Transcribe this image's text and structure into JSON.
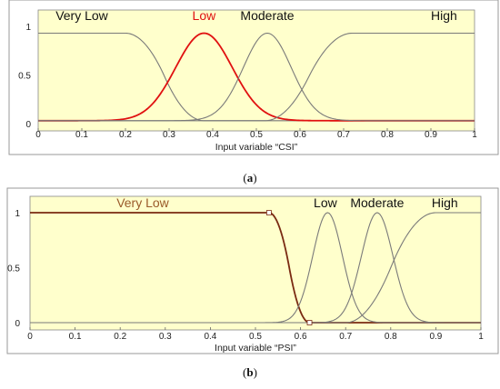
{
  "chart_data": [
    {
      "type": "line",
      "panel_label": "a",
      "xlabel": "Input variable “CSI”",
      "xlim": [
        0,
        1
      ],
      "ylim": [
        0,
        1
      ],
      "x_ticks": [
        "0",
        "0.1",
        "0.2",
        "0.3",
        "0.4",
        "0.5",
        "0.6",
        "0.7",
        "0.8",
        "0.9",
        "1"
      ],
      "y_ticks": [
        "0",
        "0.5",
        "1"
      ],
      "background": "#ffffcc",
      "series": [
        {
          "name": "Very Low",
          "shape": "zmf",
          "params": [
            0.2,
            0.38
          ],
          "color": "#7a7a7a",
          "label_x": 0.1,
          "label_color": "#111111"
        },
        {
          "name": "Low",
          "shape": "gaussmf",
          "params": [
            0.065,
            0.38
          ],
          "color": "#e01010",
          "label_x": 0.38,
          "label_color": "#e01010"
        },
        {
          "name": "Moderate",
          "shape": "gaussmf",
          "params": [
            0.055,
            0.525
          ],
          "color": "#7a7a7a",
          "label_x": 0.525,
          "label_color": "#111111"
        },
        {
          "name": "High",
          "shape": "smf",
          "params": [
            0.52,
            0.72
          ],
          "color": "#7a7a7a",
          "label_x": 0.93,
          "label_color": "#111111"
        }
      ]
    },
    {
      "type": "line",
      "panel_label": "b",
      "xlabel": "Input variable “PSI”",
      "xlim": [
        0,
        1
      ],
      "ylim": [
        0,
        1
      ],
      "x_ticks": [
        "0",
        "0.1",
        "0.2",
        "0.3",
        "0.4",
        "0.5",
        "0.6",
        "0.7",
        "0.8",
        "0.9",
        "1"
      ],
      "y_ticks": [
        "0",
        "0.5",
        "1"
      ],
      "background": "#ffffcc",
      "series": [
        {
          "name": "Very Low",
          "shape": "zmf",
          "params": [
            0.53,
            0.62
          ],
          "color": "#7a2a12",
          "label_x": 0.25,
          "label_color": "#9a5a2a"
        },
        {
          "name": "Low",
          "shape": "gaussmf",
          "params": [
            0.033,
            0.66
          ],
          "color": "#7a7a7a",
          "label_x": 0.655,
          "label_color": "#111111"
        },
        {
          "name": "Moderate",
          "shape": "gaussmf",
          "params": [
            0.035,
            0.77
          ],
          "color": "#7a7a7a",
          "label_x": 0.77,
          "label_color": "#111111"
        },
        {
          "name": "High",
          "shape": "smf",
          "params": [
            0.7,
            0.9
          ],
          "color": "#7a7a7a",
          "label_x": 0.92,
          "label_color": "#111111"
        }
      ]
    }
  ],
  "captions": {
    "a": {
      "open": "(",
      "letter": "a",
      "close": ")"
    },
    "b": {
      "open": "(",
      "letter": "b",
      "close": ")"
    }
  }
}
